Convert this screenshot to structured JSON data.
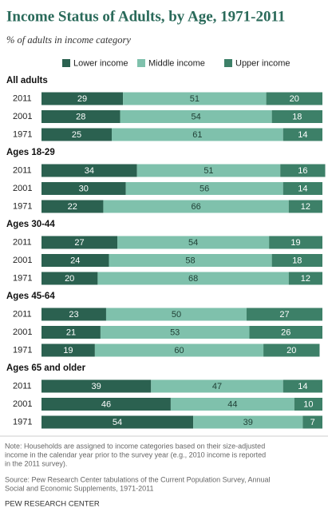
{
  "chart_data": {
    "type": "stacked_bar",
    "title": "Income Status of Adults, by Age, 1971-2011",
    "subtitle": "% of adults in income category",
    "xlim": [
      0,
      100
    ],
    "series": [
      {
        "name": "Lower income",
        "color": "#2b6150",
        "values": [
          [
            29,
            28,
            25
          ],
          [
            34,
            30,
            22
          ],
          [
            27,
            24,
            20
          ],
          [
            23,
            21,
            19
          ],
          [
            39,
            46,
            54
          ]
        ]
      },
      {
        "name": "Middle income",
        "color": "#7fc1ac",
        "values": [
          [
            51,
            54,
            61
          ],
          [
            51,
            56,
            66
          ],
          [
            54,
            58,
            68
          ],
          [
            50,
            53,
            60
          ],
          [
            47,
            44,
            39
          ]
        ]
      },
      {
        "name": "Upper income",
        "color": "#3d8068",
        "values": [
          [
            20,
            18,
            14
          ],
          [
            16,
            14,
            12
          ],
          [
            19,
            18,
            12
          ],
          [
            27,
            26,
            20
          ],
          [
            14,
            10,
            7
          ]
        ]
      }
    ],
    "groups": [
      {
        "label": "All adults",
        "categories": [
          "2011",
          "2001",
          "1971"
        ]
      },
      {
        "label": "Ages 18-29",
        "categories": [
          "2011",
          "2001",
          "1971"
        ]
      },
      {
        "label": "Ages 30-44",
        "categories": [
          "2011",
          "2001",
          "1971"
        ]
      },
      {
        "label": "Ages 45-64",
        "categories": [
          "2011",
          "2001",
          "1971"
        ]
      },
      {
        "label": "Ages 65 and older",
        "categories": [
          "2011",
          "2001",
          "1971"
        ]
      }
    ]
  },
  "note": [
    "Note: Households are assigned to income categories based on their size-adjusted",
    "income in the calendar year prior to the survey year (e.g., 2010 income is reported",
    "in the 2011 survey)."
  ],
  "source": [
    "Source: Pew Research Center tabulations of the Current Population Survey, Annual",
    "Social and Economic Supplements, 1971-2011"
  ],
  "footer": "PEW RESEARCH CENTER"
}
